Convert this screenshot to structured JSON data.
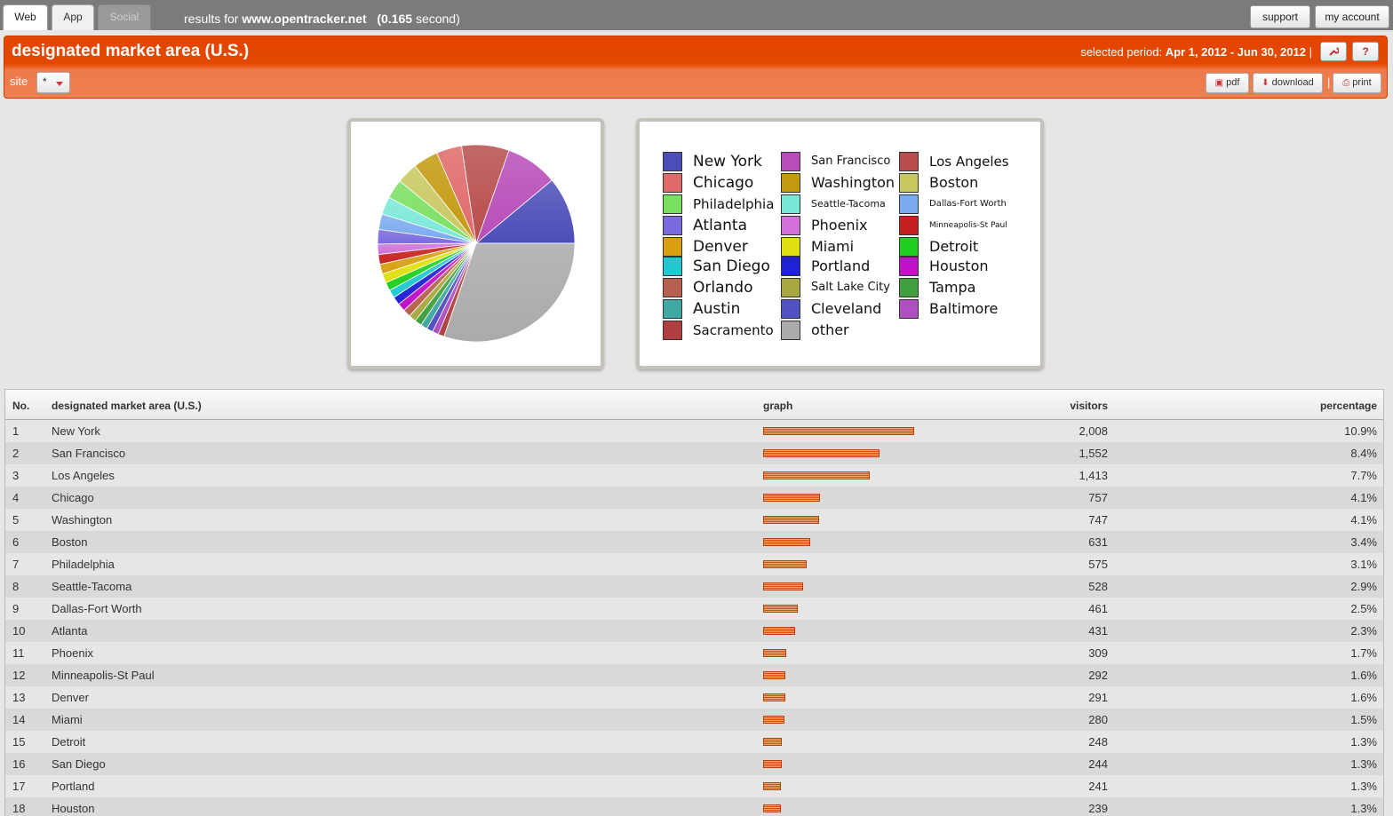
{
  "tabs": [
    {
      "label": "Web"
    },
    {
      "label": "App"
    },
    {
      "label": "Social"
    }
  ],
  "results": {
    "prefix": "results for",
    "site": "www.opentracker.net",
    "time": "(0.165",
    "time_unit": "second)"
  },
  "top_buttons": {
    "support": "support",
    "account": "my account"
  },
  "header": {
    "title": "designated market area (U.S.)",
    "period_label": "selected period:",
    "period_value": "Apr 1, 2012 - Jun 30, 2012",
    "period_sep": "|",
    "help": "?",
    "site_label": "site",
    "site_value": "*",
    "pdf": "pdf",
    "download": "download",
    "print": "print",
    "sep": "|"
  },
  "chart_data": {
    "type": "pie",
    "slices": [
      {
        "label": "New York",
        "color": "#4d4db8"
      },
      {
        "label": "San Francisco",
        "color": "#b84db8"
      },
      {
        "label": "Los Angeles",
        "color": "#b84d4d"
      },
      {
        "label": "Chicago",
        "color": "#e06a6a"
      },
      {
        "label": "Washington",
        "color": "#c49a10"
      },
      {
        "label": "Boston",
        "color": "#c8c860"
      },
      {
        "label": "Philadelphia",
        "color": "#7ae060"
      },
      {
        "label": "Seattle-Tacoma",
        "color": "#7ae8d8"
      },
      {
        "label": "Dallas-Fort Worth",
        "color": "#7aaaf0"
      },
      {
        "label": "Atlanta",
        "color": "#7a6ae0"
      },
      {
        "label": "Phoenix",
        "color": "#d070d8"
      },
      {
        "label": "Minneapolis-St Paul",
        "color": "#c82020"
      },
      {
        "label": "Denver",
        "color": "#d8a010"
      },
      {
        "label": "Miami",
        "color": "#e0e010"
      },
      {
        "label": "Detroit",
        "color": "#20d020"
      },
      {
        "label": "San Diego",
        "color": "#20c8d0"
      },
      {
        "label": "Portland",
        "color": "#2020d8"
      },
      {
        "label": "Houston",
        "color": "#c010c8"
      },
      {
        "label": "Orlando",
        "color": "#b86050"
      },
      {
        "label": "Salt Lake City",
        "color": "#a8a840"
      },
      {
        "label": "Tampa",
        "color": "#40a040"
      },
      {
        "label": "Austin",
        "color": "#40a8a0"
      },
      {
        "label": "Cleveland",
        "color": "#5050c0"
      },
      {
        "label": "Baltimore",
        "color": "#b050c0"
      },
      {
        "label": "Sacramento",
        "color": "#b04040"
      },
      {
        "label": "other",
        "color": "#aaaaaa"
      }
    ]
  },
  "table": {
    "headers": {
      "no": "No.",
      "name": "designated market area (U.S.)",
      "graph": "graph",
      "visitors": "visitors",
      "percentage": "percentage"
    },
    "rows": [
      {
        "no": "1",
        "name": "New York",
        "visitors": "2,008",
        "pct": "10.9%",
        "v": 2008
      },
      {
        "no": "2",
        "name": "San Francisco",
        "visitors": "1,552",
        "pct": "8.4%",
        "v": 1552
      },
      {
        "no": "3",
        "name": "Los Angeles",
        "visitors": "1,413",
        "pct": "7.7%",
        "v": 1413
      },
      {
        "no": "4",
        "name": "Chicago",
        "visitors": "757",
        "pct": "4.1%",
        "v": 757
      },
      {
        "no": "5",
        "name": "Washington",
        "visitors": "747",
        "pct": "4.1%",
        "v": 747
      },
      {
        "no": "6",
        "name": "Boston",
        "visitors": "631",
        "pct": "3.4%",
        "v": 631
      },
      {
        "no": "7",
        "name": "Philadelphia",
        "visitors": "575",
        "pct": "3.1%",
        "v": 575
      },
      {
        "no": "8",
        "name": "Seattle-Tacoma",
        "visitors": "528",
        "pct": "2.9%",
        "v": 528
      },
      {
        "no": "9",
        "name": "Dallas-Fort Worth",
        "visitors": "461",
        "pct": "2.5%",
        "v": 461
      },
      {
        "no": "10",
        "name": "Atlanta",
        "visitors": "431",
        "pct": "2.3%",
        "v": 431
      },
      {
        "no": "11",
        "name": "Phoenix",
        "visitors": "309",
        "pct": "1.7%",
        "v": 309
      },
      {
        "no": "12",
        "name": "Minneapolis-St Paul",
        "visitors": "292",
        "pct": "1.6%",
        "v": 292
      },
      {
        "no": "13",
        "name": "Denver",
        "visitors": "291",
        "pct": "1.6%",
        "v": 291
      },
      {
        "no": "14",
        "name": "Miami",
        "visitors": "280",
        "pct": "1.5%",
        "v": 280
      },
      {
        "no": "15",
        "name": "Detroit",
        "visitors": "248",
        "pct": "1.3%",
        "v": 248
      },
      {
        "no": "16",
        "name": "San Diego",
        "visitors": "244",
        "pct": "1.3%",
        "v": 244
      },
      {
        "no": "17",
        "name": "Portland",
        "visitors": "241",
        "pct": "1.3%",
        "v": 241
      },
      {
        "no": "18",
        "name": "Houston",
        "visitors": "239",
        "pct": "1.3%",
        "v": 239
      }
    ]
  },
  "colors": {
    "accent": "#e44500",
    "bar": "#d4540f"
  }
}
